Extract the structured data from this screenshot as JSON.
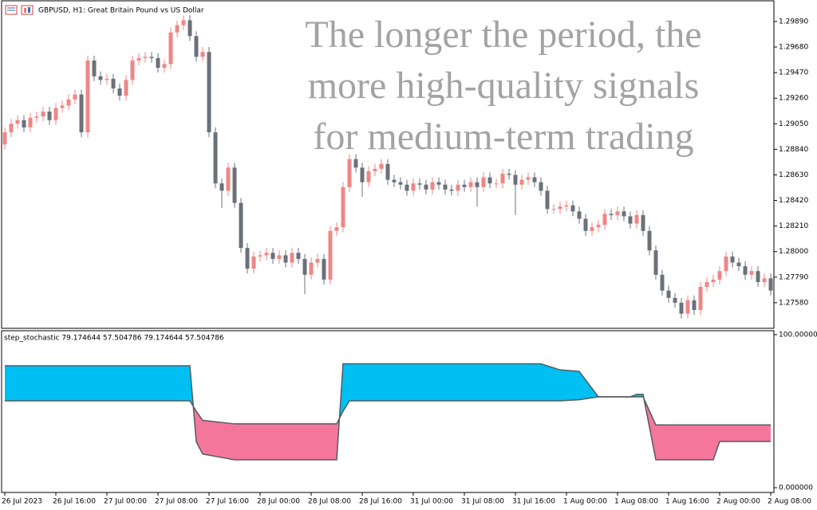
{
  "chart_data": [
    {
      "type": "candlestick",
      "title": "GBPUSD, H1:  Great Britain Pound vs US Dollar",
      "up_color": "#ef8686",
      "down_color": "#6b7079",
      "xlim": [
        -0.5,
        120.5
      ],
      "ylim": [
        1.2737,
        1.3006
      ],
      "yticks": [
        {
          "value": 1.2989,
          "label": "1.29890"
        },
        {
          "value": 1.2968,
          "label": "1.29680"
        },
        {
          "value": 1.2947,
          "label": "1.29470"
        },
        {
          "value": 1.2926,
          "label": "1.29260"
        },
        {
          "value": 1.2905,
          "label": "1.29050"
        },
        {
          "value": 1.2884,
          "label": "1.28840"
        },
        {
          "value": 1.2863,
          "label": "1.28630"
        },
        {
          "value": 1.2842,
          "label": "1.28420"
        },
        {
          "value": 1.2821,
          "label": "1.28210"
        },
        {
          "value": 1.28,
          "label": "1.28000"
        },
        {
          "value": 1.2779,
          "label": "1.27790"
        },
        {
          "value": 1.2758,
          "label": "1.27580"
        }
      ],
      "open": [
        1.2888,
        1.2898,
        1.2905,
        1.2908,
        1.2902,
        1.291,
        1.2911,
        1.2915,
        1.2908,
        1.2918,
        1.292,
        1.2925,
        1.2929,
        1.2898,
        1.2957,
        1.2944,
        1.2941,
        1.2942,
        1.2934,
        1.2928,
        1.2941,
        1.2957,
        1.2959,
        1.296,
        1.2959,
        1.2951,
        1.2954,
        1.298,
        1.2986,
        1.299,
        1.2977,
        1.296,
        1.2964,
        1.2898,
        1.2856,
        1.285,
        1.2869,
        1.284,
        1.2803,
        1.2786,
        1.2796,
        1.2797,
        1.2799,
        1.2794,
        1.2797,
        1.2791,
        1.2799,
        1.2794,
        1.2781,
        1.2791,
        1.2794,
        1.2777,
        1.2817,
        1.282,
        1.2853,
        1.2876,
        1.2869,
        1.2857,
        1.2866,
        1.2868,
        1.2872,
        1.2859,
        1.2857,
        1.2855,
        1.285,
        1.2856,
        1.2855,
        1.2851,
        1.2857,
        1.2855,
        1.2851,
        1.285,
        1.2855,
        1.2853,
        1.2857,
        1.2853,
        1.2861,
        1.2856,
        1.2856,
        1.2864,
        1.2863,
        1.2855,
        1.2859,
        1.2861,
        1.2857,
        1.285,
        1.2835,
        1.2835,
        1.2837,
        1.2838,
        1.2833,
        1.2827,
        1.2817,
        1.282,
        1.2822,
        1.2831,
        1.283,
        1.2833,
        1.2829,
        1.2823,
        1.283,
        1.2817,
        1.2801,
        1.2781,
        1.2768,
        1.2762,
        1.2758,
        1.2749,
        1.276,
        1.2752,
        1.2771,
        1.2775,
        1.2777,
        1.2784,
        1.2796,
        1.2791,
        1.2788,
        1.2781,
        1.2784,
        1.2775,
        1.2778
      ],
      "high": [
        1.2902,
        1.2909,
        1.2912,
        1.2912,
        1.2914,
        1.2915,
        1.2919,
        1.2919,
        1.2922,
        1.2924,
        1.2929,
        1.2933,
        1.2933,
        1.2961,
        1.2961,
        1.2948,
        1.2946,
        1.2946,
        1.2938,
        1.2945,
        1.2961,
        1.2963,
        1.2964,
        1.2964,
        1.2963,
        1.2958,
        1.2984,
        1.299,
        1.2994,
        1.2994,
        1.2981,
        1.2968,
        1.2968,
        1.2902,
        1.286,
        1.2873,
        1.2873,
        1.2844,
        1.2807,
        1.28,
        1.2801,
        1.2803,
        1.2803,
        1.2801,
        1.2801,
        1.2803,
        1.2803,
        1.2798,
        1.2795,
        1.2798,
        1.2798,
        1.2821,
        1.2824,
        1.2857,
        1.288,
        1.288,
        1.2873,
        1.287,
        1.2872,
        1.2876,
        1.2876,
        1.2863,
        1.2861,
        1.2859,
        1.286,
        1.286,
        1.2859,
        1.2861,
        1.2861,
        1.2859,
        1.2855,
        1.2859,
        1.2859,
        1.2861,
        1.2861,
        1.2865,
        1.2865,
        1.286,
        1.2868,
        1.2868,
        1.2867,
        1.2863,
        1.2865,
        1.2865,
        1.2861,
        1.2854,
        1.2839,
        1.2841,
        1.2842,
        1.2842,
        1.2837,
        1.2831,
        1.2824,
        1.2826,
        1.2835,
        1.2835,
        1.2837,
        1.2837,
        1.2833,
        1.2834,
        1.2834,
        1.2821,
        1.2805,
        1.2785,
        1.2772,
        1.2766,
        1.2762,
        1.2764,
        1.2764,
        1.2775,
        1.2779,
        1.2781,
        1.2788,
        1.28,
        1.28,
        1.2795,
        1.2792,
        1.2788,
        1.2788,
        1.2782,
        1.2782
      ],
      "low": [
        1.2884,
        1.2894,
        1.2901,
        1.2898,
        1.2898,
        1.2906,
        1.2907,
        1.2904,
        1.2904,
        1.2914,
        1.2916,
        1.2921,
        1.2894,
        1.2894,
        1.294,
        1.2937,
        1.2937,
        1.293,
        1.2924,
        1.2924,
        1.2937,
        1.2953,
        1.2955,
        1.2955,
        1.2947,
        1.2947,
        1.295,
        1.2976,
        1.2982,
        1.2973,
        1.2956,
        1.2956,
        1.2894,
        1.2852,
        1.2836,
        1.2846,
        1.2836,
        1.2799,
        1.2782,
        1.2782,
        1.2792,
        1.2793,
        1.279,
        1.279,
        1.2787,
        1.2787,
        1.279,
        1.2765,
        1.2777,
        1.2787,
        1.2773,
        1.2773,
        1.2813,
        1.2816,
        1.2849,
        1.2865,
        1.2845,
        1.2853,
        1.2862,
        1.2864,
        1.2855,
        1.2853,
        1.2851,
        1.2846,
        1.2846,
        1.2851,
        1.2847,
        1.2847,
        1.2851,
        1.2847,
        1.2846,
        1.2846,
        1.2849,
        1.2849,
        1.2837,
        1.2849,
        1.2852,
        1.2852,
        1.2852,
        1.2859,
        1.283,
        1.2851,
        1.2855,
        1.2853,
        1.2846,
        1.2831,
        1.2831,
        1.2831,
        1.2833,
        1.2829,
        1.2823,
        1.2813,
        1.2813,
        1.2816,
        1.2818,
        1.2826,
        1.2826,
        1.2825,
        1.2819,
        1.2819,
        1.2813,
        1.2797,
        1.2777,
        1.2764,
        1.2758,
        1.2754,
        1.2745,
        1.2745,
        1.2748,
        1.2748,
        1.2767,
        1.2771,
        1.2773,
        1.278,
        1.2787,
        1.2784,
        1.2777,
        1.2777,
        1.2771,
        1.2771,
        1.2764
      ],
      "close": [
        1.2898,
        1.2905,
        1.2908,
        1.2902,
        1.291,
        1.2911,
        1.2915,
        1.2908,
        1.2918,
        1.292,
        1.2925,
        1.2929,
        1.2898,
        1.2957,
        1.2944,
        1.2941,
        1.2942,
        1.2934,
        1.2928,
        1.2941,
        1.2957,
        1.2959,
        1.296,
        1.2959,
        1.2951,
        1.2954,
        1.298,
        1.2986,
        1.299,
        1.2977,
        1.296,
        1.2964,
        1.2898,
        1.2856,
        1.285,
        1.2869,
        1.284,
        1.2803,
        1.2786,
        1.2796,
        1.2797,
        1.2799,
        1.2794,
        1.2797,
        1.2791,
        1.2799,
        1.2794,
        1.2781,
        1.2791,
        1.2794,
        1.2777,
        1.2817,
        1.282,
        1.2853,
        1.2876,
        1.2869,
        1.2857,
        1.2866,
        1.2868,
        1.2872,
        1.2859,
        1.2857,
        1.2855,
        1.285,
        1.2856,
        1.2855,
        1.2851,
        1.2857,
        1.2855,
        1.2851,
        1.285,
        1.2855,
        1.2853,
        1.2857,
        1.2853,
        1.2861,
        1.2856,
        1.2856,
        1.2864,
        1.2863,
        1.2855,
        1.2859,
        1.2861,
        1.2857,
        1.285,
        1.2835,
        1.2835,
        1.2837,
        1.2838,
        1.2833,
        1.2827,
        1.2817,
        1.282,
        1.2822,
        1.2831,
        1.283,
        1.2833,
        1.2829,
        1.2823,
        1.283,
        1.2817,
        1.2801,
        1.2781,
        1.2768,
        1.2762,
        1.2758,
        1.2749,
        1.276,
        1.2752,
        1.2771,
        1.2775,
        1.2777,
        1.2784,
        1.2796,
        1.2791,
        1.2788,
        1.2781,
        1.2784,
        1.2775,
        1.2778,
        1.2768
      ]
    },
    {
      "type": "stepband",
      "title": "step_stochastic 79.174644 57.504786 79.174644 57.504786",
      "above_color": "#00bff3",
      "below_color": "#f4779b",
      "xlim": [
        -0.5,
        120.5
      ],
      "ylim": [
        0,
        100
      ],
      "yticks": [
        {
          "value": 100,
          "label": "100.000000"
        },
        {
          "value": 0,
          "label": "0.000000"
        }
      ],
      "xticks": [
        {
          "value": 0,
          "label": "26 Jul 2023"
        },
        {
          "value": 8,
          "label": "26 Jul 16:00"
        },
        {
          "value": 16,
          "label": "27 Jul 00:00"
        },
        {
          "value": 24,
          "label": "27 Jul 08:00"
        },
        {
          "value": 32,
          "label": "27 Jul 16:00"
        },
        {
          "value": 40,
          "label": "28 Jul 00:00"
        },
        {
          "value": 48,
          "label": "28 Jul 08:00"
        },
        {
          "value": 56,
          "label": "28 Jul 16:00"
        },
        {
          "value": 64,
          "label": "31 Jul 00:00"
        },
        {
          "value": 72,
          "label": "31 Jul 08:00"
        },
        {
          "value": 80,
          "label": "31 Jul 16:00"
        },
        {
          "value": 88,
          "label": "1 Aug 00:00"
        },
        {
          "value": 96,
          "label": "1 Aug 08:00"
        },
        {
          "value": 104,
          "label": "1 Aug 16:00"
        },
        {
          "value": 112,
          "label": "2 Aug 00:00"
        },
        {
          "value": 120,
          "label": "2 Aug 08:00"
        }
      ],
      "x": [
        0,
        29,
        30,
        31,
        36,
        52,
        53,
        54,
        84,
        87,
        90,
        93,
        98,
        99,
        100,
        102,
        111,
        112,
        120
      ],
      "series": [
        {
          "color": "#555a60",
          "values": [
            79.7,
            79.7,
            30,
            22,
            18.2,
            18.2,
            81,
            81,
            81,
            77,
            76,
            59.4,
            59.4,
            61,
            61,
            18.2,
            18.2,
            30.2,
            30.2
          ]
        },
        {
          "color": "#555a60",
          "values": [
            56.8,
            56.8,
            50,
            44,
            41.7,
            41.7,
            50,
            56.8,
            56.8,
            56.8,
            57.5,
            59.4,
            59.4,
            59.4,
            59.4,
            41,
            41,
            41,
            41
          ]
        }
      ]
    }
  ],
  "overlay_text": [
    "The longer the period, the",
    "more high-quality signals",
    "for medium-term trading"
  ]
}
